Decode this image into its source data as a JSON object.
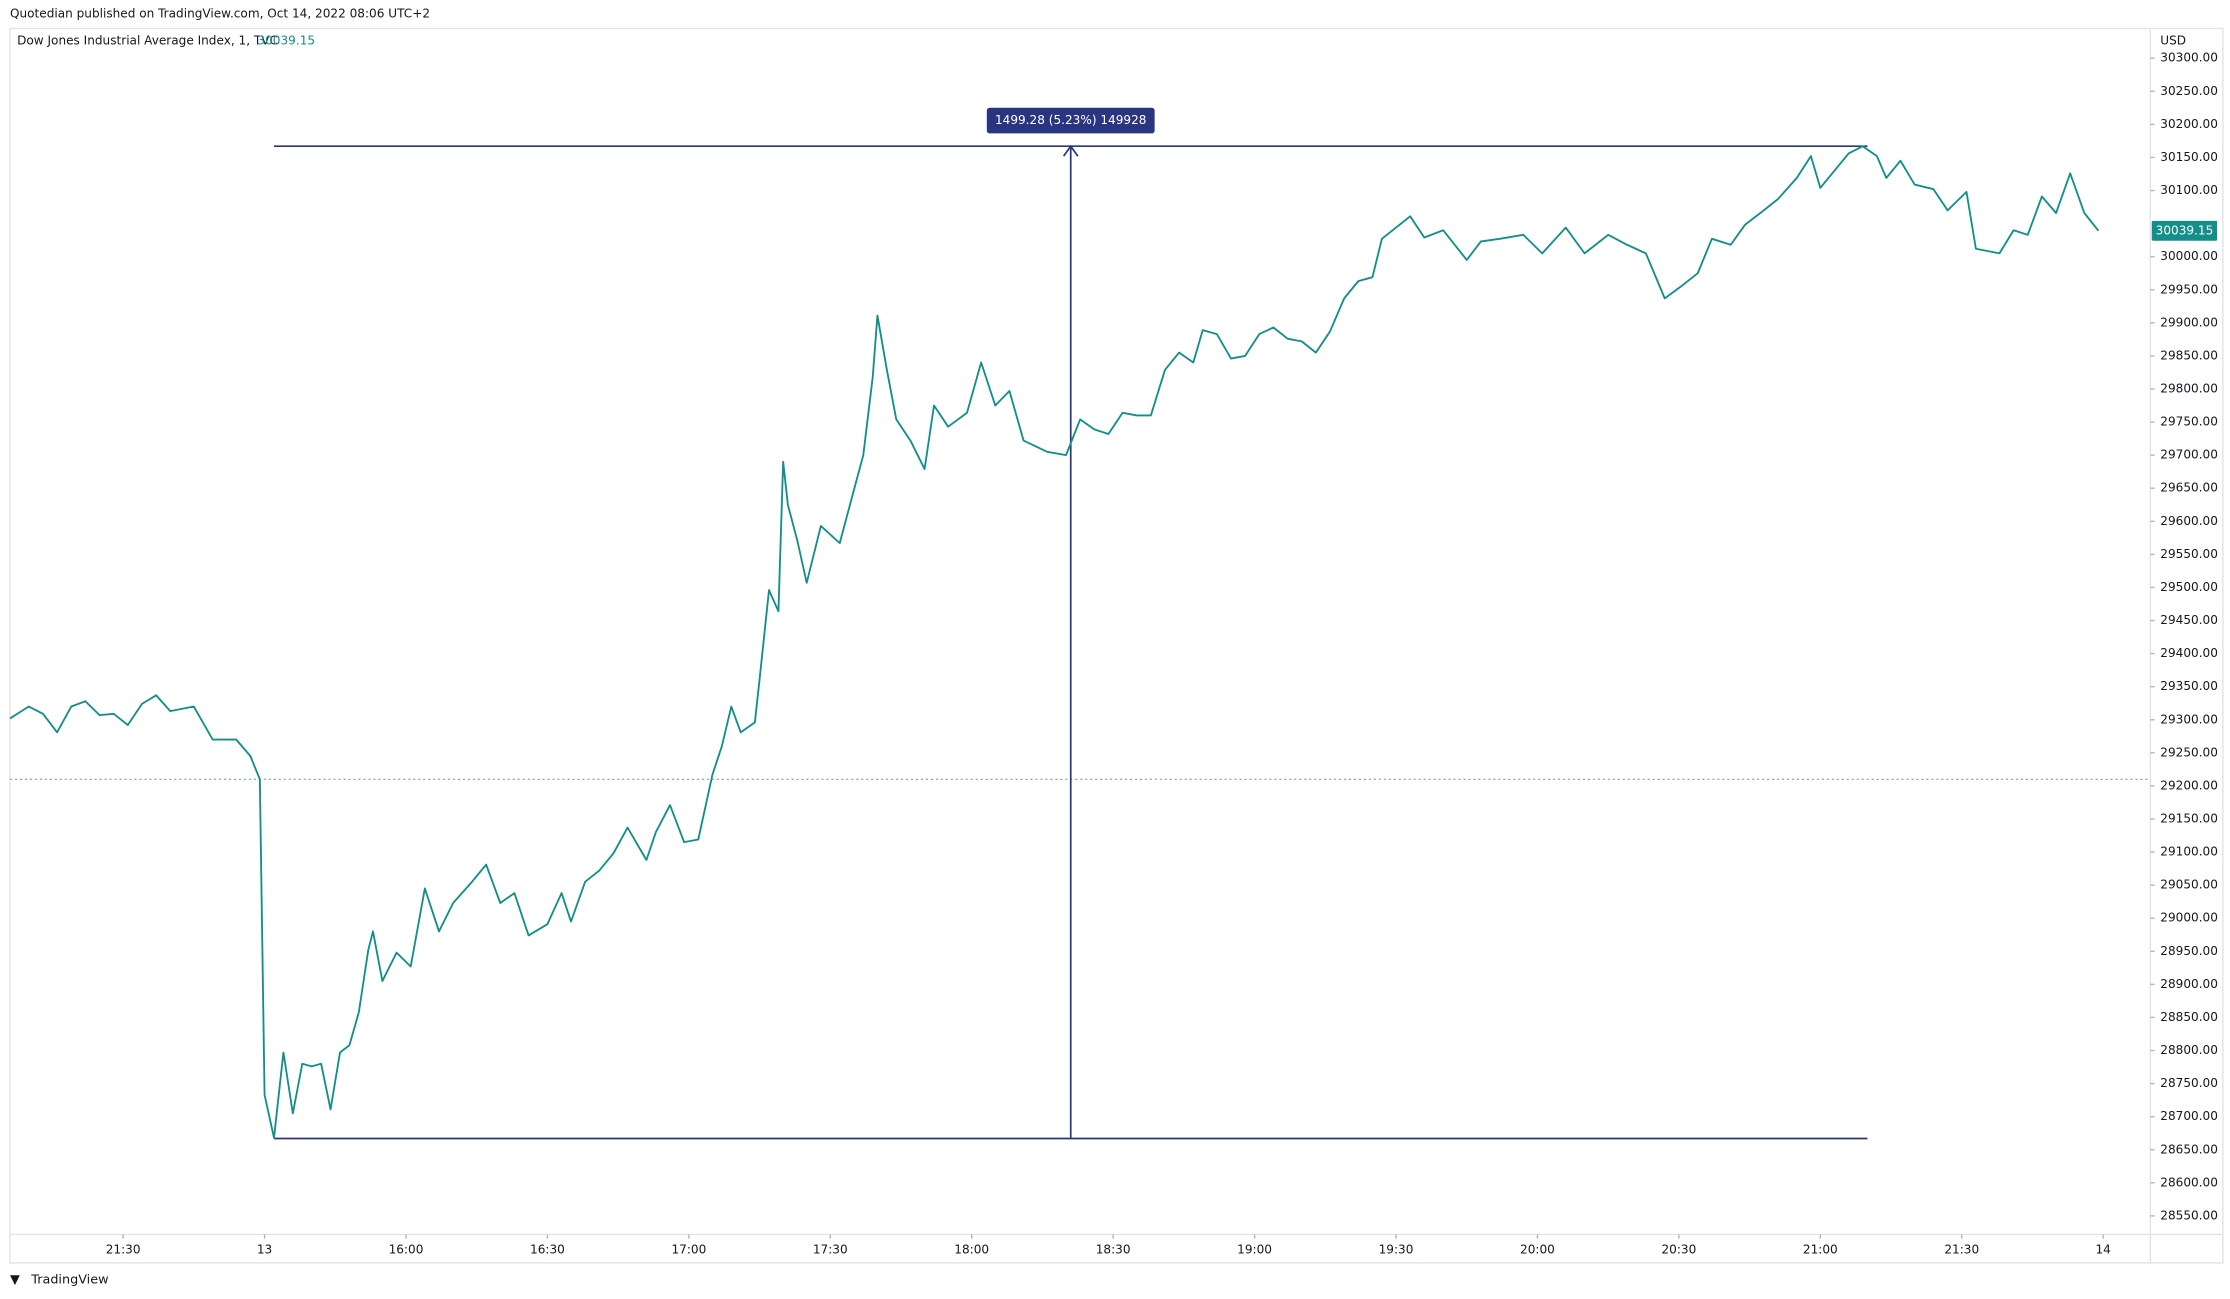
{
  "header": {
    "published": "Quotedian published on TradingView.com, Oct 14, 2022 08:06 UTC+2",
    "footer": "TradingView"
  },
  "chart_data": {
    "type": "line",
    "title": "Dow Jones Industrial Average Index, 1, TVC",
    "y_unit": "USD",
    "xlim": [
      -24,
      430
    ],
    "ylim": [
      28522,
      30345
    ],
    "xticks": [
      {
        "value": 0,
        "label": "21:30"
      },
      {
        "value": 30,
        "label": "13"
      },
      {
        "value": 60,
        "label": "16:00"
      },
      {
        "value": 90,
        "label": "16:30"
      },
      {
        "value": 120,
        "label": "17:00"
      },
      {
        "value": 150,
        "label": "17:30"
      },
      {
        "value": 180,
        "label": "18:00"
      },
      {
        "value": 210,
        "label": "18:30"
      },
      {
        "value": 240,
        "label": "19:00"
      },
      {
        "value": 270,
        "label": "19:30"
      },
      {
        "value": 300,
        "label": "20:00"
      },
      {
        "value": 330,
        "label": "20:30"
      },
      {
        "value": 360,
        "label": "21:00"
      },
      {
        "value": 390,
        "label": "21:30"
      },
      {
        "value": 420,
        "label": "14"
      }
    ],
    "yticks": [
      {
        "value": 28550,
        "label": "28550.00"
      },
      {
        "value": 28600,
        "label": "28600.00"
      },
      {
        "value": 28650,
        "label": "28650.00"
      },
      {
        "value": 28700,
        "label": "28700.00"
      },
      {
        "value": 28750,
        "label": "28750.00"
      },
      {
        "value": 28800,
        "label": "28800.00"
      },
      {
        "value": 28850,
        "label": "28850.00"
      },
      {
        "value": 28900,
        "label": "28900.00"
      },
      {
        "value": 28950,
        "label": "28950.00"
      },
      {
        "value": 29000,
        "label": "29000.00"
      },
      {
        "value": 29050,
        "label": "29050.00"
      },
      {
        "value": 29100,
        "label": "29100.00"
      },
      {
        "value": 29150,
        "label": "29150.00"
      },
      {
        "value": 29200,
        "label": "29200.00"
      },
      {
        "value": 29250,
        "label": "29250.00"
      },
      {
        "value": 29300,
        "label": "29300.00"
      },
      {
        "value": 29350,
        "label": "29350.00"
      },
      {
        "value": 29400,
        "label": "29400.00"
      },
      {
        "value": 29450,
        "label": "29450.00"
      },
      {
        "value": 29500,
        "label": "29500.00"
      },
      {
        "value": 29550,
        "label": "29550.00"
      },
      {
        "value": 29600,
        "label": "29600.00"
      },
      {
        "value": 29650,
        "label": "29650.00"
      },
      {
        "value": 29700,
        "label": "29700.00"
      },
      {
        "value": 29750,
        "label": "29750.00"
      },
      {
        "value": 29800,
        "label": "29800.00"
      },
      {
        "value": 29850,
        "label": "29850.00"
      },
      {
        "value": 29900,
        "label": "29900.00"
      },
      {
        "value": 29950,
        "label": "29950.00"
      },
      {
        "value": 30000,
        "label": "30000.00"
      },
      {
        "value": 30100,
        "label": "30100.00"
      },
      {
        "value": 30150,
        "label": "30150.00"
      },
      {
        "value": 30200,
        "label": "30200.00"
      },
      {
        "value": 30250,
        "label": "30250.00"
      },
      {
        "value": 30300,
        "label": "30300.00"
      }
    ],
    "prev_close": 29210,
    "measure": {
      "from_x": 32,
      "to_x": 370,
      "arrow_x": 201,
      "low": 28667,
      "high": 30167,
      "label": "1499.28 (5.23%) 149928",
      "color": "#2a3580"
    },
    "series": [
      {
        "name": "Dow Jones Industrial Average Index",
        "color": "#138f8a",
        "x": [
          -24,
          -20,
          -17,
          -14,
          -11,
          -8,
          -5,
          -2,
          1,
          4,
          7,
          10,
          15,
          19,
          24,
          27,
          29,
          30,
          32,
          34,
          36,
          38,
          40,
          42,
          44,
          46,
          48,
          50,
          52,
          53,
          55,
          58,
          61,
          64,
          67,
          70,
          74,
          77,
          80,
          83,
          86,
          90,
          93,
          95,
          98,
          101,
          104,
          107,
          111,
          113,
          116,
          119,
          122,
          125,
          127,
          129,
          131,
          134,
          135,
          137,
          139,
          140,
          141,
          143,
          145,
          148,
          152,
          155,
          157,
          159,
          160,
          162,
          164,
          167,
          170,
          172,
          175,
          179,
          182,
          185,
          188,
          191,
          196,
          200,
          203,
          206,
          209,
          212,
          215,
          218,
          221,
          224,
          227,
          229,
          232,
          235,
          238,
          241,
          244,
          247,
          250,
          253,
          256,
          259,
          262,
          265,
          267,
          270,
          273,
          276,
          280,
          285,
          288,
          292,
          297,
          301,
          306,
          310,
          315,
          319,
          323,
          327,
          331,
          334,
          337,
          341,
          344,
          348,
          351,
          355,
          358,
          360,
          363,
          366,
          369,
          372,
          374,
          377,
          380,
          384,
          387,
          391,
          393,
          398,
          401,
          404,
          407,
          410,
          413,
          416,
          419
        ],
        "values": [
          29302,
          29320,
          29309,
          29281,
          29320,
          29328,
          29307,
          29309,
          29292,
          29324,
          29337,
          29313,
          29320,
          29270,
          29270,
          29245,
          29210,
          28733,
          28668,
          28797,
          28705,
          28780,
          28776,
          28780,
          28711,
          28797,
          28808,
          28858,
          28952,
          28980,
          28905,
          28948,
          28927,
          29045,
          28980,
          29023,
          29055,
          29081,
          29023,
          29038,
          28974,
          28991,
          29038,
          28995,
          29055,
          29072,
          29098,
          29137,
          29088,
          29130,
          29171,
          29115,
          29119,
          29217,
          29260,
          29320,
          29281,
          29296,
          29361,
          29496,
          29464,
          29690,
          29625,
          29571,
          29507,
          29593,
          29567,
          29647,
          29700,
          29818,
          29911,
          29829,
          29754,
          29722,
          29679,
          29775,
          29743,
          29764,
          29840,
          29775,
          29797,
          29722,
          29705,
          29700,
          29754,
          29739,
          29732,
          29764,
          29760,
          29760,
          29829,
          29855,
          29840,
          29889,
          29883,
          29846,
          29850,
          29883,
          29893,
          29876,
          29872,
          29855,
          29887,
          29937,
          29963,
          29969,
          30027,
          30044,
          30061,
          30029,
          30040,
          29995,
          30023,
          30027,
          30033,
          30005,
          30044,
          30005,
          30033,
          30018,
          30005,
          29937,
          29958,
          29975,
          30027,
          30018,
          30048,
          30070,
          30087,
          30119,
          30152,
          30104,
          30130,
          30156,
          30167,
          30152,
          30119,
          30145,
          30109,
          30102,
          30070,
          30098,
          30012,
          30005,
          30040,
          30033,
          30091,
          30066,
          30126,
          30066,
          30039.15
        ]
      }
    ]
  }
}
